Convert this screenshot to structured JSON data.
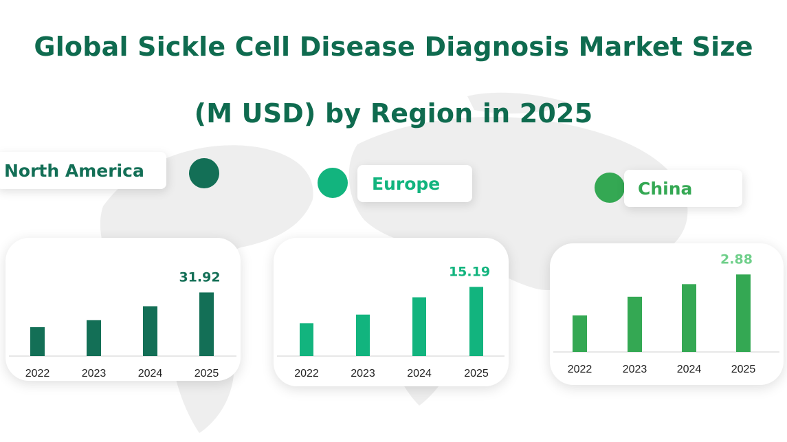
{
  "title_line1": "Global Sickle Cell Disease Diagnosis Market Size",
  "title_line2": "(M USD) by Region in 2025",
  "colors": {
    "title": "#0f6b4f",
    "north_america": "#136f56",
    "europe": "#12b47e",
    "china": "#34a853",
    "china_value": "#6fcf8a"
  },
  "chart_data": [
    {
      "type": "bar",
      "region": "North America",
      "categories": [
        "2022",
        "2023",
        "2024",
        "2025"
      ],
      "values": [
        14.5,
        18.0,
        25.0,
        31.92
      ],
      "data_labels": [
        "",
        "",
        "",
        "31.92"
      ],
      "ylim": [
        0,
        40
      ],
      "grid": false,
      "color": "#136f56"
    },
    {
      "type": "bar",
      "region": "Europe",
      "categories": [
        "2022",
        "2023",
        "2024",
        "2025"
      ],
      "values": [
        7.2,
        9.1,
        12.9,
        15.19
      ],
      "data_labels": [
        "",
        "",
        "",
        "15.19"
      ],
      "ylim": [
        0,
        17.5
      ],
      "grid": false,
      "color": "#12b47e"
    },
    {
      "type": "bar",
      "region": "China",
      "categories": [
        "2022",
        "2023",
        "2024",
        "2025"
      ],
      "values": [
        1.36,
        2.05,
        2.52,
        2.88
      ],
      "data_labels": [
        "",
        "",
        "",
        "2.88"
      ],
      "ylim": [
        0,
        3.5
      ],
      "grid": false,
      "color": "#34a853"
    }
  ]
}
